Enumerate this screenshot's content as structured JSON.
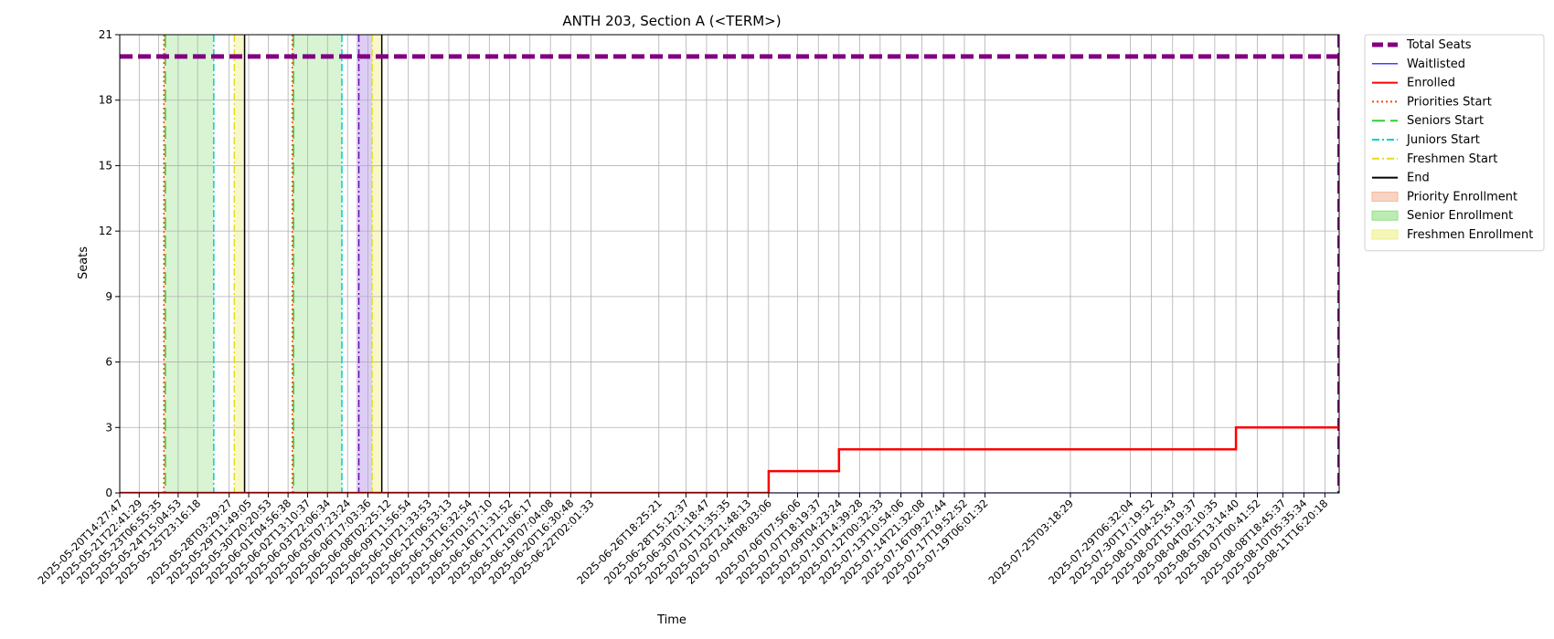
{
  "chart_data": {
    "type": "line",
    "title": "ANTH 203, Section A (<TERM>)",
    "xlabel": "Time",
    "ylabel": "Seats",
    "ylim": [
      0,
      21
    ],
    "yticks": [
      0,
      3,
      6,
      9,
      12,
      15,
      18,
      21
    ],
    "grid": true,
    "legend_position": "outside-right",
    "x_tick_labels": [
      "2025-05-20T14:27:47",
      "2025-05-21T22:41:29",
      "2025-05-23T06:55:35",
      "2025-05-24T15:04:53",
      "2025-05-25T23:16:18",
      "2025-05-28T03:29:27",
      "2025-05-29T11:49:05",
      "2025-05-30T20:20:53",
      "2025-06-01T04:56:38",
      "2025-06-02T13:10:37",
      "2025-06-03T22:06:34",
      "2025-06-05T07:23:24",
      "2025-06-06T17:03:36",
      "2025-06-08T02:25:12",
      "2025-06-09T11:56:54",
      "2025-06-10T21:33:53",
      "2025-06-12T06:53:13",
      "2025-06-13T16:32:54",
      "2025-06-15T01:57:10",
      "2025-06-16T11:31:52",
      "2025-06-17T21:06:17",
      "2025-06-19T07:04:08",
      "2025-06-20T16:30:48",
      "2025-06-22T02:01:33",
      "2025-06-26T18:25:21",
      "2025-06-28T15:12:37",
      "2025-06-30T01:18:47",
      "2025-07-01T11:35:35",
      "2025-07-02T21:48:13",
      "2025-07-04T08:03:06",
      "2025-07-06T07:56:06",
      "2025-07-07T18:19:37",
      "2025-07-09T04:23:24",
      "2025-07-10T14:39:28",
      "2025-07-12T00:32:33",
      "2025-07-13T10:54:06",
      "2025-07-14T21:32:08",
      "2025-07-16T09:27:44",
      "2025-07-17T19:52:52",
      "2025-07-19T06:01:32",
      "2025-07-25T03:18:29",
      "2025-07-29T06:32:04",
      "2025-07-30T17:19:52",
      "2025-08-01T04:25:43",
      "2025-08-02T15:19:37",
      "2025-08-04T02:10:35",
      "2025-08-05T13:14:40",
      "2025-08-07T00:41:52",
      "2025-08-08T18:45:37",
      "2025-08-10T05:35:34",
      "2025-08-11T16:20:18"
    ],
    "series": [
      {
        "name": "Total Seats",
        "color": "#800080",
        "style": "dashed",
        "points": [
          [
            "2025-05-20T14:27:47",
            20
          ],
          [
            "2025-08-12T16:00:00",
            20
          ]
        ]
      },
      {
        "name": "Waitlisted",
        "color": "#0000ff",
        "style": "solid",
        "points": [
          [
            "2025-05-20T14:27:47",
            0
          ],
          [
            "2025-08-12T16:00:00",
            0
          ]
        ]
      },
      {
        "name": "Enrolled",
        "color": "#ff0000",
        "style": "solid-step",
        "points": [
          [
            "2025-05-20T14:27:47",
            0
          ],
          [
            "2025-07-04T08:03:06",
            0
          ],
          [
            "2025-07-04T08:03:06",
            1
          ],
          [
            "2025-07-09T04:23:24",
            1
          ],
          [
            "2025-07-09T04:23:24",
            2
          ],
          [
            "2025-08-05T13:14:40",
            2
          ],
          [
            "2025-08-05T13:14:40",
            3
          ],
          [
            "2025-08-12T16:00:00",
            3
          ]
        ]
      }
    ],
    "events": [
      {
        "name": "Priorities Start",
        "color": "#ff4500",
        "style": "dotted",
        "at": [
          "2025-05-23T15:30:00",
          "2025-06-01T12:00:00"
        ]
      },
      {
        "name": "Seniors Start",
        "color": "#32cd32",
        "style": "dashed",
        "at": [
          "2025-05-23T18:00:00",
          "2025-06-01T14:00:00"
        ]
      },
      {
        "name": "Juniors Start",
        "color": "#00ced1",
        "style": "dashdot",
        "at": [
          "2025-05-27T02:00:00",
          "2025-06-04T22:00:00"
        ]
      },
      {
        "name": "Freshmen Start",
        "color": "#e3dc1a",
        "style": "dashdot",
        "at": [
          "2025-05-28T12:00:00",
          "2025-06-07T00:00:00"
        ]
      },
      {
        "name": "End",
        "color": "#000000",
        "style": "solid",
        "at": [
          "2025-05-29T05:00:00",
          "2025-06-07T16:00:00"
        ]
      }
    ],
    "shaded_regions": [
      {
        "name": "Priority Enrollment",
        "color": "#f4b79b",
        "opacity": 0.45,
        "ranges": [
          [
            "2025-05-23T15:30:00",
            "2025-05-23T18:00:00"
          ],
          [
            "2025-06-01T12:00:00",
            "2025-06-01T14:00:00"
          ]
        ]
      },
      {
        "name": "Senior Enrollment",
        "color": "#90e080",
        "opacity": 0.35,
        "ranges": [
          [
            "2025-05-23T18:00:00",
            "2025-05-27T02:00:00"
          ],
          [
            "2025-06-01T14:00:00",
            "2025-06-04T22:00:00"
          ]
        ]
      },
      {
        "name": "Freshmen Enrollment",
        "color": "#eef08a",
        "opacity": 0.45,
        "ranges": [
          [
            "2025-05-28T12:00:00",
            "2025-05-29T05:00:00"
          ],
          [
            "2025-06-07T00:00:00",
            "2025-06-07T16:00:00"
          ]
        ]
      },
      {
        "name": "",
        "color": "#a982e6",
        "opacity": 0.4,
        "ranges": [
          [
            "2025-06-05T22:00:00",
            "2025-06-07T00:00:00"
          ]
        ]
      }
    ],
    "extra_lines": [
      {
        "color": "#6a0dad",
        "style": "dashdot",
        "at": [
          "2025-06-06T02:00:00"
        ]
      },
      {
        "color": "#800080",
        "style": "dashed",
        "at": [
          "2025-08-12T16:00:00"
        ]
      }
    ],
    "legend": [
      {
        "label": "Total Seats",
        "kind": "line",
        "color": "#800080",
        "style": "dashed-thick"
      },
      {
        "label": "Waitlisted",
        "kind": "line",
        "color": "#0000ff",
        "style": "solid-thin"
      },
      {
        "label": "Enrolled",
        "kind": "line",
        "color": "#ff0000",
        "style": "solid"
      },
      {
        "label": "Priorities Start",
        "kind": "line",
        "color": "#ff4500",
        "style": "dotted"
      },
      {
        "label": "Seniors Start",
        "kind": "line",
        "color": "#32cd32",
        "style": "dashed"
      },
      {
        "label": "Juniors Start",
        "kind": "line",
        "color": "#00ced1",
        "style": "dashdot"
      },
      {
        "label": "Freshmen Start",
        "kind": "line",
        "color": "#e3dc1a",
        "style": "dashdot"
      },
      {
        "label": "End",
        "kind": "line",
        "color": "#000000",
        "style": "solid"
      },
      {
        "label": "Priority Enrollment",
        "kind": "patch",
        "color": "#f4b79b"
      },
      {
        "label": "Senior Enrollment",
        "kind": "patch",
        "color": "#90e080"
      },
      {
        "label": "Freshmen Enrollment",
        "kind": "patch",
        "color": "#eef08a"
      }
    ]
  }
}
